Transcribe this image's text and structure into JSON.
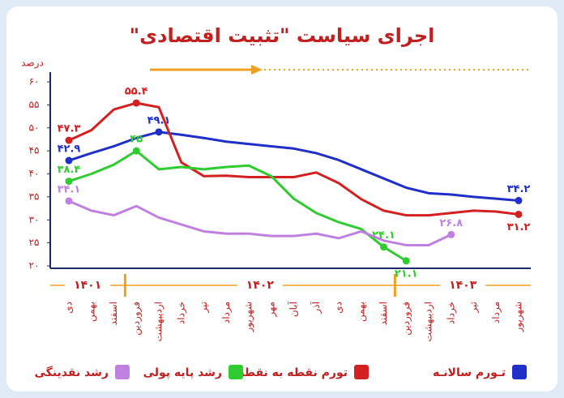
{
  "chart_data": {
    "type": "line",
    "title": "اجرای سیاست \"تثبیت اقتصادی\"",
    "ylabel": "درصد",
    "categories": [
      "دی",
      "بهمن",
      "اسفند",
      "فروردین",
      "اردیبهشت",
      "خرداد",
      "تیر",
      "مرداد",
      "شهریور",
      "مهر",
      "آبان",
      "آذر",
      "دی",
      "بهمن",
      "اسفند",
      "فروردین",
      "اردیبهشت",
      "خرداد",
      "تیر",
      "مرداد",
      "شهریور"
    ],
    "year_groups": [
      {
        "label": "۱۴۰۱",
        "months": 3
      },
      {
        "label": "۱۴۰۲",
        "months": 12
      },
      {
        "label": "۱۴۰۳",
        "months": 6
      }
    ],
    "ylim": [
      20,
      60
    ],
    "yticks": [
      {
        "value": 20,
        "label": "۲۰"
      },
      {
        "value": 25,
        "label": "۲۵"
      },
      {
        "value": 30,
        "label": "۳۰"
      },
      {
        "value": 35,
        "label": "۳۵"
      },
      {
        "value": 40,
        "label": "۴۰"
      },
      {
        "value": 45,
        "label": "۴۵"
      },
      {
        "value": 50,
        "label": "۵۰"
      },
      {
        "value": 55,
        "label": "۵۵"
      },
      {
        "value": 60,
        "label": "۶۰"
      }
    ],
    "series": [
      {
        "name": "تـورم سالانـه",
        "color": "#1f2fc8",
        "values": [
          42.9,
          44.5,
          46,
          47.8,
          49.1,
          48.5,
          47.8,
          47,
          46.5,
          46,
          45.5,
          44.5,
          43,
          41,
          39,
          37,
          35.8,
          35.5,
          35,
          34.6,
          34.2
        ],
        "value_labels": [
          "۴۲.۹",
          null,
          null,
          null,
          "۴۹.۱",
          null,
          null,
          null,
          null,
          null,
          null,
          null,
          null,
          null,
          null,
          null,
          null,
          null,
          null,
          null,
          "۳۴.۲"
        ]
      },
      {
        "name": "تورم نقطه به نقطه",
        "color": "#d42020",
        "values": [
          47.3,
          49.5,
          54,
          55.4,
          54.5,
          42.5,
          39.5,
          39.6,
          39.3,
          39.3,
          39.3,
          40.3,
          38,
          34.5,
          32,
          31,
          31,
          31.5,
          32,
          31.8,
          31.2
        ],
        "value_labels": [
          "۴۷.۳",
          null,
          null,
          "۵۵.۴",
          null,
          null,
          null,
          null,
          null,
          null,
          null,
          null,
          null,
          null,
          null,
          null,
          null,
          null,
          null,
          null,
          "۳۱.۲"
        ]
      },
      {
        "name": "رشد پایه پولی",
        "color": "#2ecc2e",
        "values": [
          38.4,
          40,
          42,
          45,
          41,
          41.5,
          41,
          41.5,
          41.8,
          39.5,
          34.6,
          31.5,
          29.5,
          28,
          24.1,
          21.1,
          null,
          null,
          null,
          null,
          null
        ],
        "value_labels": [
          "۳۸.۴",
          null,
          null,
          "۴۵",
          null,
          null,
          null,
          null,
          null,
          null,
          null,
          null,
          null,
          null,
          "۲۴.۱",
          "۲۱.۱",
          null,
          null,
          null,
          null,
          null
        ]
      },
      {
        "name": "رشد نقدینگی",
        "color": "#c080e0",
        "values": [
          34.1,
          32,
          31,
          33,
          30.5,
          29,
          27.5,
          27,
          27,
          26.5,
          26.5,
          27,
          26,
          27.5,
          25.5,
          24.5,
          24.5,
          26.8,
          null,
          null,
          null
        ],
        "value_labels": [
          "۳۴.۱",
          null,
          null,
          null,
          null,
          null,
          null,
          null,
          null,
          null,
          null,
          null,
          null,
          null,
          null,
          null,
          null,
          "۲۶.۸",
          null,
          null,
          null
        ]
      }
    ]
  }
}
